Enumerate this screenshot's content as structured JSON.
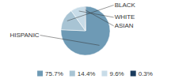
{
  "chart_data": {
    "type": "pie",
    "categories": [
      "HISPANIC",
      "BLACK",
      "WHITE",
      "ASIAN"
    ],
    "values": [
      75.7,
      14.4,
      9.6,
      0.3
    ],
    "value_labels": [
      "75.7%",
      "14.4%",
      "9.6%",
      "0.3%"
    ],
    "colors": [
      "#6e9ab5",
      "#a8c4d4",
      "#c8dce8",
      "#1a3a5c"
    ],
    "legend": "bottom"
  }
}
